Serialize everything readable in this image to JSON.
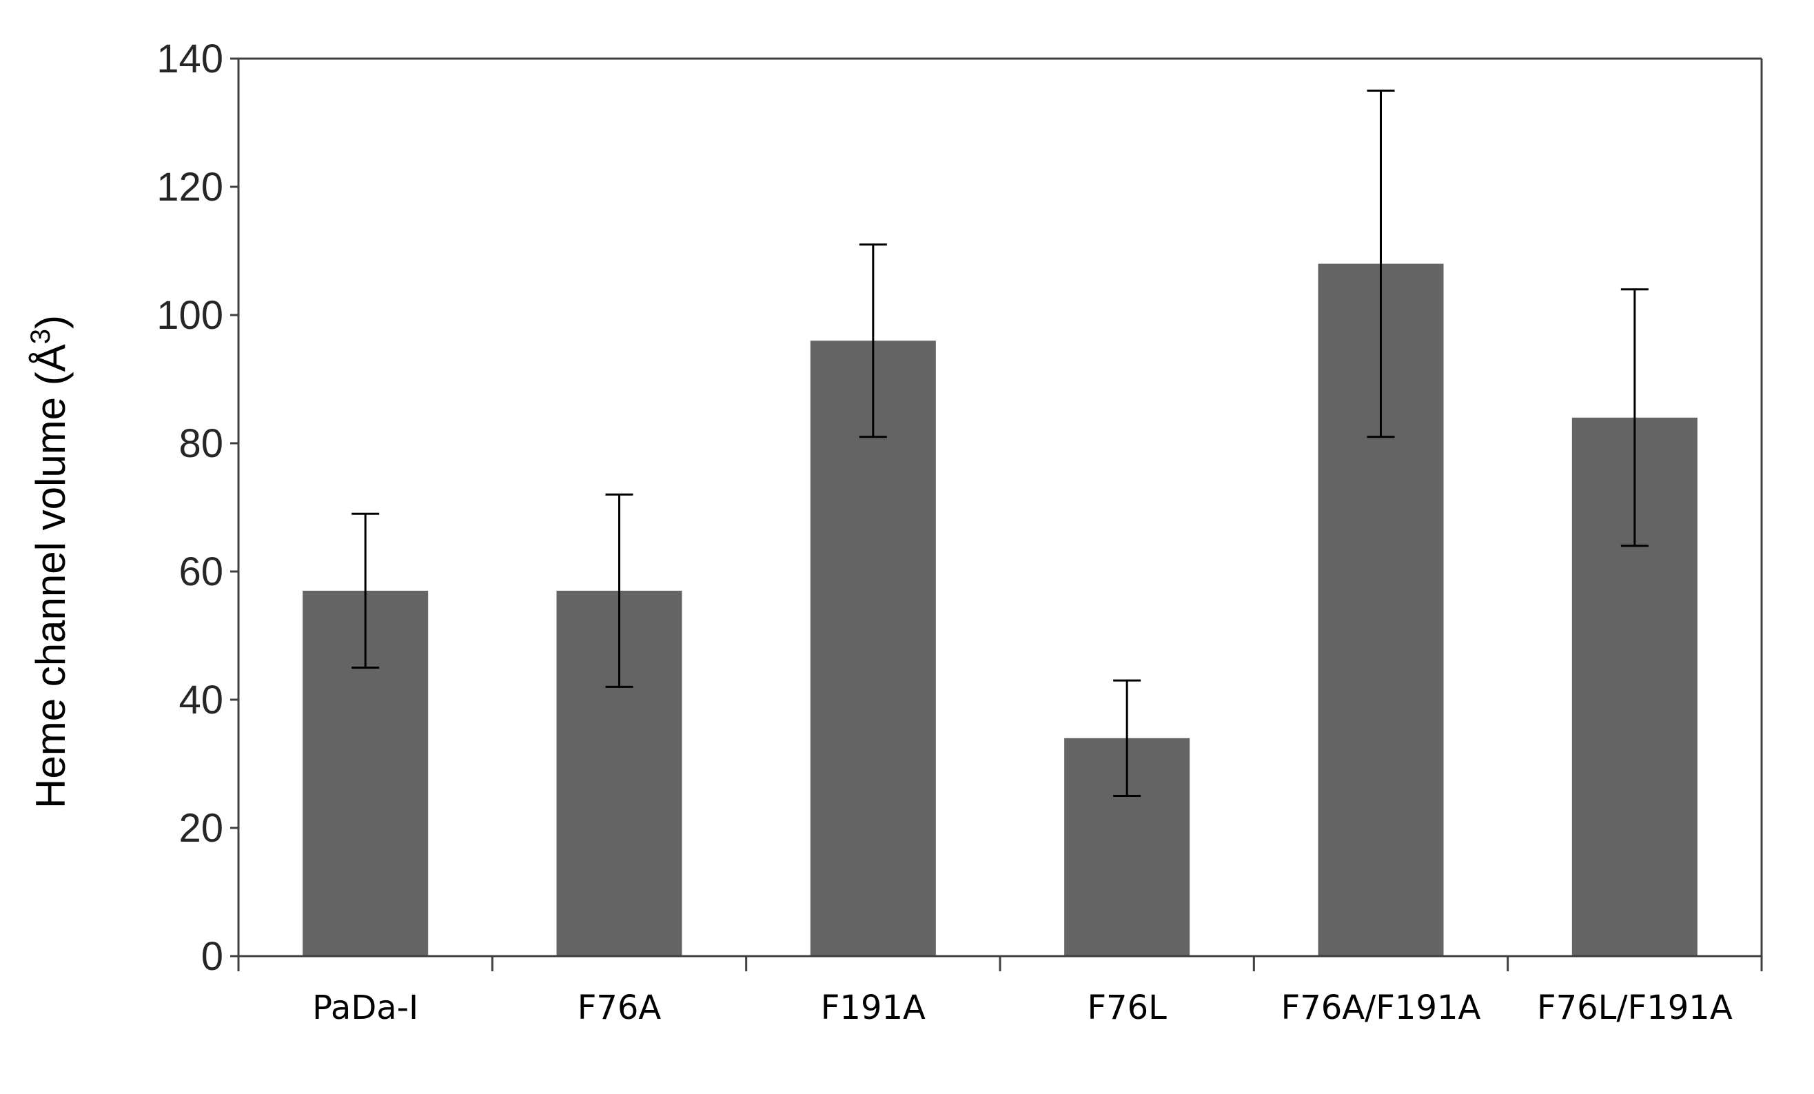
{
  "chart_data": {
    "type": "bar",
    "title": "",
    "xlabel": "",
    "ylabel": "Heme channel volume (Å",
    "ylabel_superscript": "3",
    "ylabel_suffix": ")",
    "categories": [
      "PaDa-I",
      "F76A",
      "F191A",
      "F76L",
      "F76A/F191A",
      "F76L/F191A"
    ],
    "values": [
      57,
      57,
      96,
      34,
      108,
      84
    ],
    "error_upper": [
      69,
      72,
      111,
      43,
      135,
      104
    ],
    "error_lower": [
      45,
      42,
      81,
      25,
      81,
      64
    ],
    "ylim": [
      0,
      140
    ],
    "yticks": [
      "0",
      "20",
      "40",
      "60",
      "80",
      "100",
      "120",
      "140"
    ],
    "grid": false,
    "legend": "none",
    "bar_color": "#646464",
    "axis_color": "#404040",
    "error_bar_color": "#000000"
  }
}
